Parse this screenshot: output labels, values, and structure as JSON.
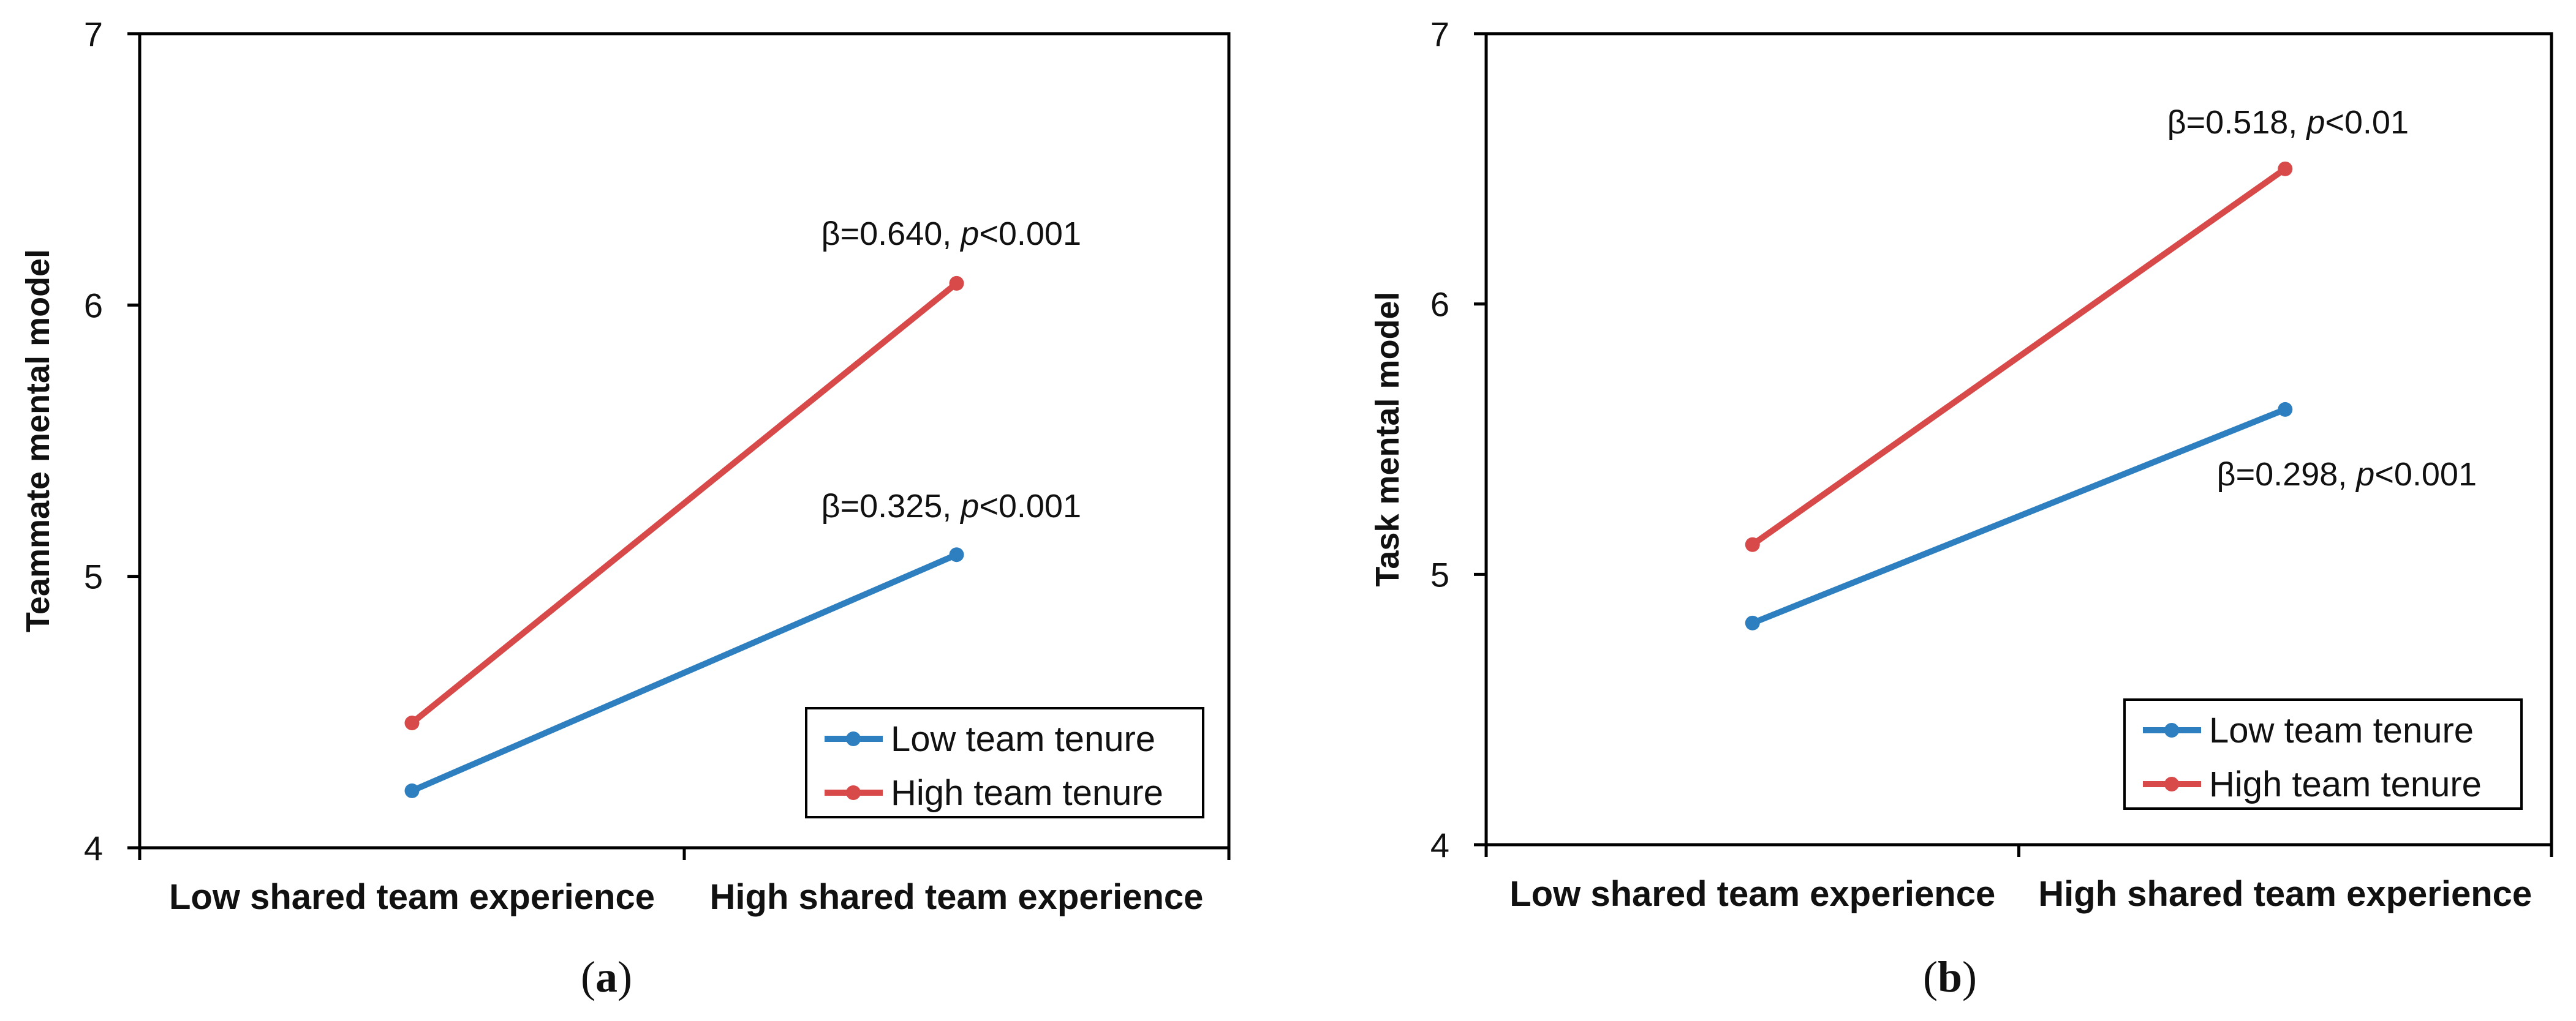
{
  "chart_data": [
    {
      "type": "line",
      "panel_label": "a",
      "ylabel": "Teammate mental model",
      "xlabel": "",
      "categories": [
        "Low shared team experience",
        "High shared team experience"
      ],
      "ylim": [
        4,
        7
      ],
      "yticks": [
        4,
        5,
        6,
        7
      ],
      "grid": false,
      "legend_placement": "bottom-right",
      "series": [
        {
          "name": "Low team tenure",
          "values": [
            4.21,
            5.08
          ],
          "color": "#2e7fc0"
        },
        {
          "name": "High team tenure",
          "values": [
            4.46,
            6.08
          ],
          "color": "#d84a4a"
        }
      ],
      "annotations": [
        {
          "series": "High team tenure",
          "beta": "β=0.640, ",
          "p": "p",
          "rest": "<0.001"
        },
        {
          "series": "Low team tenure",
          "beta": "β=0.325, ",
          "p": "p",
          "rest": "<0.001"
        }
      ]
    },
    {
      "type": "line",
      "panel_label": "b",
      "ylabel": "Task mental model",
      "xlabel": "",
      "categories": [
        "Low shared team experience",
        "High shared team experience"
      ],
      "ylim": [
        4,
        7
      ],
      "yticks": [
        4,
        5,
        6,
        7
      ],
      "grid": false,
      "legend_placement": "bottom-right",
      "series": [
        {
          "name": "Low team tenure",
          "values": [
            4.82,
            5.61
          ],
          "color": "#2e7fc0"
        },
        {
          "name": "High team tenure",
          "values": [
            5.11,
            6.5
          ],
          "color": "#d84a4a"
        }
      ],
      "annotations": [
        {
          "series": "High team tenure",
          "beta": "β=0.518, ",
          "p": "p",
          "rest": "<0.01"
        },
        {
          "series": "Low team tenure",
          "beta": "β=0.298, ",
          "p": "p",
          "rest": "<0.001"
        }
      ]
    }
  ]
}
